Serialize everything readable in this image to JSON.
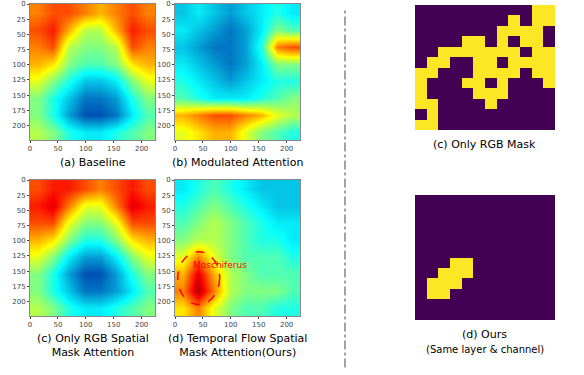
{
  "chart_data": [
    {
      "type": "heatmap",
      "title": [
        "(a) Baseline"
      ],
      "color": "jet",
      "x": [
        14,
        42,
        70,
        98,
        126,
        154,
        182,
        210
      ],
      "y": [
        14,
        42,
        70,
        98,
        126,
        154,
        182,
        210
      ],
      "z": [
        [
          0.75,
          0.8,
          0.8,
          0.75,
          0.7,
          0.75,
          0.8,
          0.75
        ],
        [
          0.8,
          0.85,
          0.7,
          0.55,
          0.55,
          0.7,
          0.85,
          0.8
        ],
        [
          0.75,
          0.8,
          0.55,
          0.5,
          0.5,
          0.55,
          0.8,
          0.75
        ],
        [
          0.7,
          0.65,
          0.5,
          0.45,
          0.45,
          0.5,
          0.65,
          0.7
        ],
        [
          0.6,
          0.5,
          0.4,
          0.3,
          0.3,
          0.35,
          0.5,
          0.6
        ],
        [
          0.5,
          0.4,
          0.3,
          0.2,
          0.2,
          0.25,
          0.4,
          0.5
        ],
        [
          0.5,
          0.4,
          0.25,
          0.15,
          0.15,
          0.2,
          0.35,
          0.45
        ],
        [
          0.55,
          0.5,
          0.4,
          0.35,
          0.35,
          0.4,
          0.45,
          0.5
        ]
      ],
      "zlim": [
        0,
        1
      ],
      "xlim": [
        0,
        224
      ],
      "ylim": [
        224,
        0
      ],
      "xticks": [
        0,
        50,
        100,
        150,
        200
      ],
      "yticks": [
        0,
        25,
        50,
        75,
        100,
        125,
        150,
        175,
        200
      ]
    },
    {
      "type": "heatmap",
      "title": [
        "(b) Modulated Attention"
      ],
      "color": "jet",
      "x": [
        14,
        42,
        70,
        98,
        126,
        154,
        182,
        210
      ],
      "y": [
        14,
        42,
        70,
        98,
        126,
        154,
        182,
        210
      ],
      "z": [
        [
          0.3,
          0.35,
          0.3,
          0.25,
          0.3,
          0.35,
          0.4,
          0.35
        ],
        [
          0.35,
          0.3,
          0.25,
          0.2,
          0.25,
          0.35,
          0.5,
          0.45
        ],
        [
          0.3,
          0.25,
          0.2,
          0.2,
          0.25,
          0.4,
          0.75,
          0.8
        ],
        [
          0.35,
          0.3,
          0.25,
          0.2,
          0.25,
          0.35,
          0.5,
          0.5
        ],
        [
          0.4,
          0.35,
          0.3,
          0.25,
          0.3,
          0.35,
          0.4,
          0.4
        ],
        [
          0.45,
          0.4,
          0.35,
          0.35,
          0.35,
          0.4,
          0.45,
          0.5
        ],
        [
          0.7,
          0.75,
          0.8,
          0.8,
          0.75,
          0.7,
          0.6,
          0.55
        ],
        [
          0.6,
          0.65,
          0.7,
          0.7,
          0.6,
          0.5,
          0.45,
          0.4
        ]
      ],
      "zlim": [
        0,
        1
      ],
      "xlim": [
        0,
        224
      ],
      "ylim": [
        224,
        0
      ],
      "xticks": [
        0,
        50,
        100,
        150,
        200
      ],
      "yticks": [
        0,
        25,
        50,
        75,
        100,
        125,
        150,
        175,
        200
      ]
    },
    {
      "type": "heatmap",
      "title": [
        "(c) Only RGB Spatial",
        "Mask Attention"
      ],
      "color": "jet",
      "x": [
        14,
        42,
        70,
        98,
        126,
        154,
        182,
        210
      ],
      "y": [
        14,
        42,
        70,
        98,
        126,
        154,
        182,
        210
      ],
      "z": [
        [
          0.8,
          0.85,
          0.85,
          0.8,
          0.75,
          0.8,
          0.85,
          0.8
        ],
        [
          0.85,
          0.9,
          0.75,
          0.6,
          0.6,
          0.75,
          0.9,
          0.85
        ],
        [
          0.8,
          0.8,
          0.6,
          0.5,
          0.5,
          0.6,
          0.8,
          0.8
        ],
        [
          0.7,
          0.65,
          0.5,
          0.4,
          0.4,
          0.5,
          0.65,
          0.7
        ],
        [
          0.6,
          0.5,
          0.35,
          0.25,
          0.25,
          0.35,
          0.5,
          0.6
        ],
        [
          0.5,
          0.4,
          0.25,
          0.15,
          0.15,
          0.25,
          0.4,
          0.5
        ],
        [
          0.5,
          0.4,
          0.3,
          0.2,
          0.2,
          0.25,
          0.35,
          0.45
        ],
        [
          0.55,
          0.5,
          0.4,
          0.35,
          0.35,
          0.4,
          0.45,
          0.5
        ]
      ],
      "zlim": [
        0,
        1
      ],
      "xlim": [
        0,
        224
      ],
      "ylim": [
        224,
        0
      ],
      "xticks": [
        0,
        50,
        100,
        150,
        200
      ],
      "yticks": [
        0,
        25,
        50,
        75,
        100,
        125,
        150,
        175,
        200
      ]
    },
    {
      "type": "heatmap",
      "title": [
        "(d) Temporal Flow Spatial",
        "Mask Attention(Ours)"
      ],
      "color": "jet",
      "x": [
        14,
        42,
        70,
        98,
        126,
        154,
        182,
        210
      ],
      "y": [
        14,
        42,
        70,
        98,
        126,
        154,
        182,
        210
      ],
      "z": [
        [
          0.35,
          0.4,
          0.45,
          0.4,
          0.35,
          0.3,
          0.3,
          0.3
        ],
        [
          0.4,
          0.45,
          0.5,
          0.45,
          0.4,
          0.35,
          0.3,
          0.3
        ],
        [
          0.45,
          0.5,
          0.55,
          0.5,
          0.45,
          0.4,
          0.35,
          0.35
        ],
        [
          0.5,
          0.55,
          0.55,
          0.5,
          0.45,
          0.4,
          0.4,
          0.35
        ],
        [
          0.6,
          0.75,
          0.6,
          0.5,
          0.45,
          0.45,
          0.45,
          0.4
        ],
        [
          0.7,
          0.9,
          0.7,
          0.55,
          0.5,
          0.45,
          0.45,
          0.45
        ],
        [
          0.75,
          0.95,
          0.75,
          0.55,
          0.5,
          0.5,
          0.5,
          0.45
        ],
        [
          0.65,
          0.75,
          0.6,
          0.5,
          0.45,
          0.45,
          0.4,
          0.4
        ]
      ],
      "zlim": [
        0,
        1
      ],
      "xlim": [
        0,
        224
      ],
      "ylim": [
        224,
        0
      ],
      "xticks": [
        0,
        50,
        100,
        150,
        200
      ],
      "yticks": [
        0,
        25,
        50,
        75,
        100,
        125,
        150,
        175,
        200
      ],
      "annotations": [
        {
          "text": "Moschiferus",
          "x": 80,
          "y": 140,
          "color": "red"
        }
      ]
    },
    {
      "type": "heatmap",
      "title": [
        "(c) Only RGB Mask"
      ],
      "color": "viridis",
      "tick_labels": false,
      "z": [
        [
          0,
          0,
          0,
          0,
          0,
          0,
          0,
          0,
          0,
          0,
          1,
          1
        ],
        [
          0,
          0,
          0,
          0,
          0,
          0,
          0,
          0,
          1,
          0,
          1,
          1
        ],
        [
          0,
          0,
          0,
          0,
          0,
          0,
          0,
          1,
          1,
          1,
          1,
          0
        ],
        [
          0,
          0,
          0,
          0,
          1,
          1,
          0,
          1,
          0,
          1,
          1,
          0
        ],
        [
          0,
          0,
          1,
          1,
          1,
          1,
          1,
          1,
          1,
          0,
          1,
          1
        ],
        [
          0,
          1,
          1,
          0,
          0,
          1,
          1,
          0,
          1,
          1,
          1,
          1
        ],
        [
          1,
          1,
          0,
          0,
          0,
          1,
          1,
          1,
          1,
          0,
          1,
          1
        ],
        [
          1,
          0,
          0,
          0,
          1,
          1,
          0,
          1,
          0,
          0,
          0,
          1
        ],
        [
          1,
          0,
          0,
          0,
          0,
          1,
          1,
          1,
          0,
          0,
          0,
          0
        ],
        [
          1,
          1,
          0,
          0,
          0,
          0,
          1,
          0,
          0,
          0,
          0,
          0
        ],
        [
          0,
          1,
          0,
          0,
          0,
          0,
          0,
          0,
          0,
          0,
          0,
          0
        ],
        [
          1,
          1,
          0,
          0,
          0,
          0,
          0,
          0,
          0,
          0,
          0,
          0
        ]
      ],
      "zlim": [
        0,
        1
      ]
    },
    {
      "type": "heatmap",
      "title": [
        "(d) Ours"
      ],
      "subtitle": "(Same layer & channel)",
      "color": "viridis",
      "tick_labels": false,
      "z": [
        [
          0,
          0,
          0,
          0,
          0,
          0,
          0,
          0,
          0,
          0,
          0,
          0
        ],
        [
          0,
          0,
          0,
          0,
          0,
          0,
          0,
          0,
          0,
          0,
          0,
          0
        ],
        [
          0,
          0,
          0,
          0,
          0,
          0,
          0,
          0,
          0,
          0,
          0,
          0
        ],
        [
          0,
          0,
          0,
          0,
          0,
          0,
          0,
          0,
          0,
          0,
          0,
          0
        ],
        [
          0,
          0,
          0,
          0,
          0,
          0,
          0,
          0,
          0,
          0,
          0,
          0
        ],
        [
          0,
          0,
          0,
          0,
          0,
          0,
          0,
          0,
          0,
          0,
          0,
          0
        ],
        [
          0,
          0,
          0,
          1,
          1,
          0,
          0,
          0,
          0,
          0,
          0,
          0
        ],
        [
          0,
          0,
          1,
          1,
          1,
          0,
          0,
          0,
          0,
          0,
          0,
          0
        ],
        [
          0,
          1,
          1,
          1,
          0,
          0,
          0,
          0,
          0,
          0,
          0,
          0
        ],
        [
          0,
          1,
          1,
          0,
          0,
          0,
          0,
          0,
          0,
          0,
          0,
          0
        ],
        [
          0,
          0,
          0,
          0,
          0,
          0,
          0,
          0,
          0,
          0,
          0,
          0
        ],
        [
          0,
          0,
          0,
          0,
          0,
          0,
          0,
          0,
          0,
          0,
          0,
          0
        ]
      ],
      "zlim": [
        0,
        1
      ]
    }
  ]
}
